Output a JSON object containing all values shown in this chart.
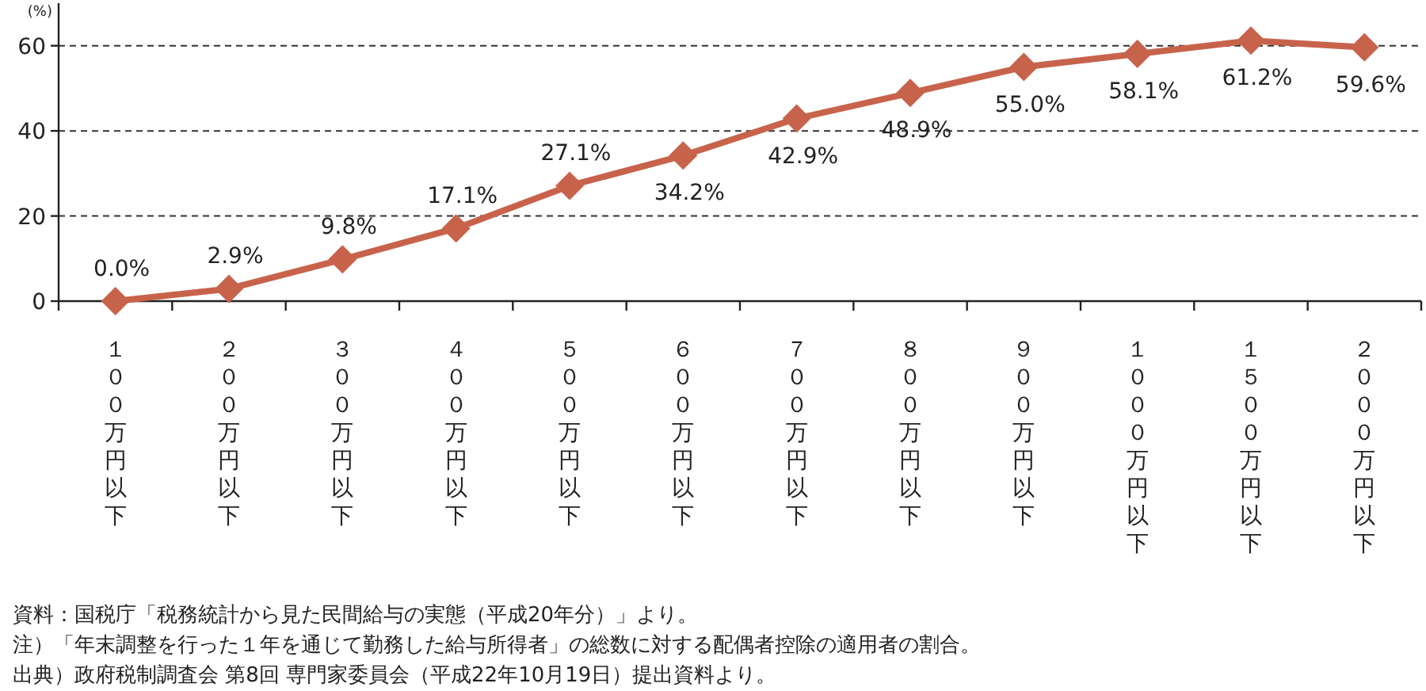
{
  "chart_data": {
    "type": "line",
    "ylabel": "(%)",
    "categories": [
      "１００万円以下",
      "２００万円以下",
      "３００万円以下",
      "４００万円以下",
      "５００万円以下",
      "６００万円以下",
      "７００万円以下",
      "８００万円以下",
      "９００万円以下",
      "１０００万円以下",
      "１５００万円以下",
      "２０００万円以下"
    ],
    "series": [
      {
        "color": "#c8634b",
        "values": [
          0.0,
          2.9,
          9.8,
          17.1,
          27.1,
          34.2,
          42.9,
          48.9,
          55.0,
          58.1,
          61.2,
          59.6
        ],
        "value_labels": [
          "0.0%",
          "2.9%",
          "9.8%",
          "17.1%",
          "27.1%",
          "34.2%",
          "42.9%",
          "48.9%",
          "55.0%",
          "58.1%",
          "61.2%",
          "59.6%"
        ]
      }
    ],
    "ylim": [
      0,
      70
    ],
    "yticks": [
      0,
      20,
      40,
      60
    ],
    "grid": "y",
    "marker": "diamond",
    "line_style": "solid",
    "annotations": [
      "資料：国税庁「税務統計から見た民間給与の実態（平成20年分）」より。",
      "注）「年末調整を行った１年を通じて勤務した給与所得者」の総数に対する配偶者控除の適用者の割合。",
      "出典）政府税制調査会 第8回 専門家委員会（平成22年10月19日）提出資料より。"
    ]
  }
}
